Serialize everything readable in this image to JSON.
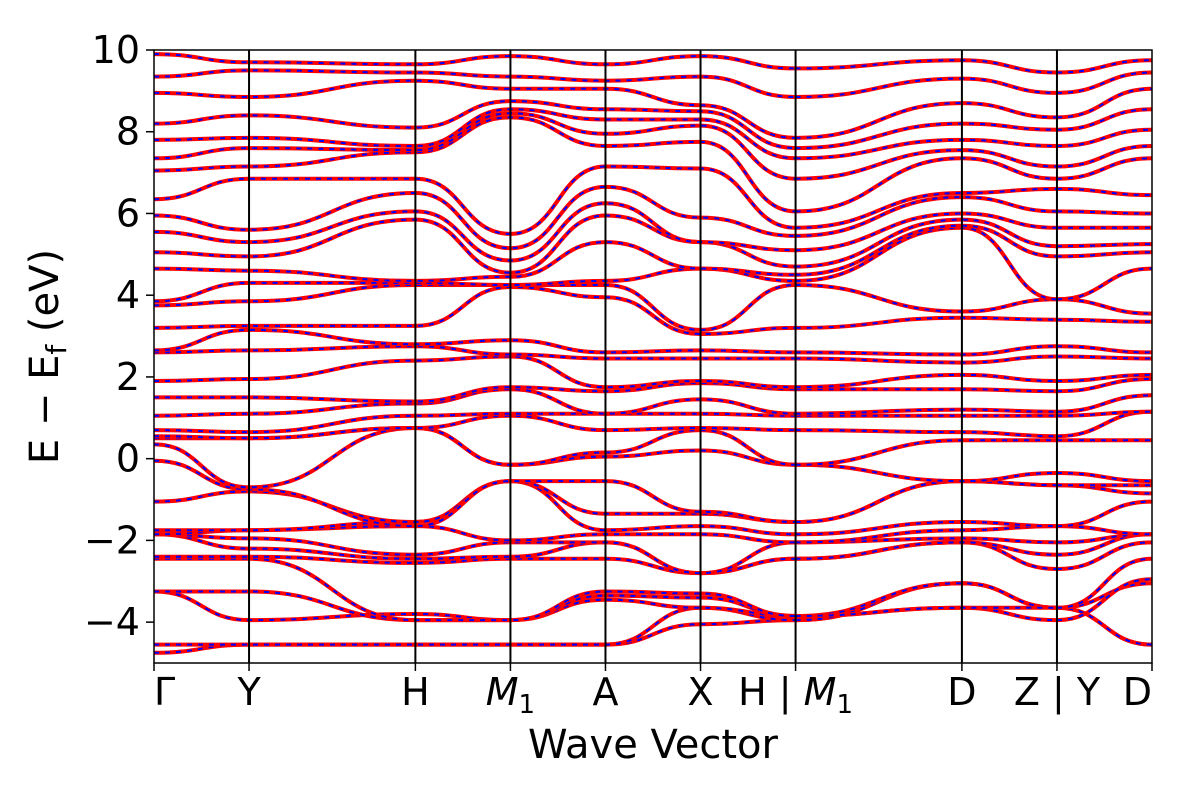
{
  "chart_data": {
    "type": "line",
    "title": "",
    "xlabel": "Wave Vector",
    "ylabel": "E − E",
    "ylabel_subscript": "f",
    "ylabel_unit": " (eV)",
    "ylim": [
      -5,
      10
    ],
    "yticks": [
      -4,
      -2,
      0,
      2,
      4,
      6,
      8,
      10
    ],
    "ytick_labels": [
      "−4",
      "−2",
      "0",
      "2",
      "4",
      "6",
      "8",
      "10"
    ],
    "kpath": {
      "positions": [
        0,
        1,
        2.75,
        3.75,
        4.75,
        5.75,
        6.75,
        8.5,
        9.5,
        10.5
      ],
      "labels": [
        "Γ",
        "Y",
        "H",
        "M",
        "A",
        "X",
        "H | M",
        "D",
        "Z | Y",
        "D"
      ],
      "label_subscripts": [
        "",
        "",
        "",
        "1",
        "",
        "",
        "1",
        "",
        "",
        ""
      ],
      "label_italic": [
        false,
        false,
        false,
        true,
        false,
        false,
        true,
        false,
        false,
        false
      ],
      "break_positions": [
        6.75,
        9.5
      ]
    },
    "grid": false,
    "legend": "none",
    "colors": {
      "series_a": "#ff0000",
      "series_b": "#0000ff",
      "vline": "#000000",
      "frame": "#000000"
    },
    "series": [
      {
        "values": [
          -4.75,
          -4.55,
          -4.55,
          -4.55,
          -4.55,
          -4.05,
          -3.95,
          -3.05,
          -3.65,
          -4.55
        ]
      },
      {
        "values": [
          -4.55,
          -4.55,
          -4.55,
          -4.55,
          -4.55,
          -3.65,
          -3.95,
          -3.05,
          -3.65,
          -4.55
        ]
      },
      {
        "values": [
          -3.25,
          -3.95,
          -3.8,
          -3.95,
          -3.45,
          -3.65,
          -3.85,
          -3.05,
          -3.65,
          -3.05
        ]
      },
      {
        "values": [
          -3.25,
          -3.25,
          -3.95,
          -3.95,
          -3.35,
          -3.4,
          -3.85,
          -3.65,
          -3.95,
          -2.95
        ]
      },
      {
        "values": [
          -2.45,
          -2.45,
          -3.95,
          -3.95,
          -3.25,
          -3.3,
          -3.85,
          -3.65,
          -3.65,
          -2.45
        ]
      },
      {
        "values": [
          -2.4,
          -2.4,
          -2.55,
          -2.45,
          -2.45,
          -2.8,
          -2.45,
          -2.05,
          -2.7,
          -2.05
        ]
      },
      {
        "values": [
          -1.85,
          -2.2,
          -2.45,
          -2.4,
          -2.05,
          -2.8,
          -2.45,
          -2.05,
          -2.35,
          -1.85
        ]
      },
      {
        "values": [
          -1.85,
          -1.95,
          -2.35,
          -2.05,
          -2.05,
          -2.8,
          -2.05,
          -1.95,
          -2.05,
          -1.85
        ]
      },
      {
        "values": [
          -1.85,
          -1.75,
          -1.65,
          -2.0,
          -1.85,
          -1.85,
          -2.05,
          -1.75,
          -1.65,
          -1.85
        ]
      },
      {
        "values": [
          -1.75,
          -1.75,
          -1.55,
          -0.55,
          -1.75,
          -1.65,
          -1.85,
          -1.55,
          -1.65,
          -1.05
        ]
      },
      {
        "values": [
          -1.05,
          -0.8,
          -1.55,
          -0.55,
          -1.35,
          -1.35,
          -1.55,
          -0.55,
          -0.65,
          -0.85
        ]
      },
      {
        "values": [
          -0.05,
          -0.75,
          -1.65,
          -0.55,
          -0.55,
          -1.3,
          -1.55,
          -0.55,
          -0.65,
          -0.65
        ]
      },
      {
        "values": [
          0.35,
          -0.7,
          0.75,
          -0.15,
          0.05,
          0.2,
          -0.15,
          -0.55,
          -0.35,
          -0.55
        ]
      },
      {
        "values": [
          0.5,
          0.5,
          0.75,
          -0.15,
          0.15,
          0.7,
          -0.15,
          0.45,
          0.45,
          0.45
        ]
      },
      {
        "values": [
          0.55,
          0.5,
          0.75,
          1.05,
          0.7,
          0.75,
          0.7,
          0.65,
          0.55,
          1.15
        ]
      },
      {
        "values": [
          0.7,
          0.65,
          1.05,
          1.1,
          1.1,
          1.1,
          1.05,
          1.05,
          1.05,
          1.15
        ]
      },
      {
        "values": [
          1.05,
          1.1,
          1.35,
          1.7,
          1.1,
          1.45,
          1.1,
          1.2,
          1.15,
          1.55
        ]
      },
      {
        "values": [
          1.5,
          1.5,
          1.4,
          1.75,
          1.65,
          1.85,
          1.7,
          1.7,
          1.65,
          1.95
        ]
      },
      {
        "values": [
          1.9,
          1.95,
          2.4,
          2.5,
          1.75,
          1.9,
          1.75,
          2.05,
          1.9,
          2.05
        ]
      },
      {
        "values": [
          2.6,
          2.65,
          2.75,
          2.55,
          2.45,
          2.45,
          2.45,
          2.35,
          2.5,
          2.45
        ]
      },
      {
        "values": [
          2.65,
          3.15,
          2.8,
          2.9,
          2.6,
          2.65,
          2.6,
          2.55,
          2.75,
          2.6
        ]
      },
      {
        "values": [
          3.2,
          3.25,
          3.25,
          4.2,
          3.95,
          3.05,
          3.2,
          3.45,
          3.4,
          3.35
        ]
      },
      {
        "values": [
          3.75,
          3.85,
          4.25,
          4.25,
          4.25,
          3.15,
          4.25,
          3.6,
          3.9,
          3.55
        ]
      },
      {
        "values": [
          3.85,
          4.3,
          4.3,
          4.25,
          4.35,
          4.65,
          4.35,
          5.65,
          3.9,
          4.65
        ]
      },
      {
        "values": [
          4.65,
          4.6,
          4.35,
          4.45,
          5.3,
          4.65,
          4.5,
          5.7,
          4.95,
          5.05
        ]
      },
      {
        "values": [
          5.05,
          4.95,
          5.85,
          4.55,
          5.95,
          5.3,
          4.7,
          5.85,
          5.2,
          5.25
        ]
      },
      {
        "values": [
          5.55,
          5.3,
          6.05,
          4.85,
          6.25,
          5.3,
          5.1,
          6.0,
          5.65,
          5.65
        ]
      },
      {
        "values": [
          5.95,
          5.6,
          6.5,
          5.15,
          6.65,
          5.9,
          5.45,
          6.4,
          6.05,
          6.0
        ]
      },
      {
        "values": [
          6.35,
          6.85,
          6.85,
          5.5,
          7.15,
          7.1,
          5.65,
          6.5,
          6.6,
          6.45
        ]
      },
      {
        "values": [
          7.05,
          7.15,
          7.5,
          8.35,
          7.65,
          7.75,
          6.05,
          7.35,
          6.85,
          7.35
        ]
      },
      {
        "values": [
          7.35,
          7.6,
          7.55,
          8.45,
          7.95,
          8.15,
          6.85,
          7.55,
          7.15,
          7.65
        ]
      },
      {
        "values": [
          7.8,
          7.85,
          7.65,
          8.55,
          8.3,
          8.3,
          7.35,
          7.8,
          7.65,
          8.05
        ]
      },
      {
        "values": [
          8.2,
          8.4,
          8.1,
          8.75,
          8.55,
          8.5,
          7.6,
          8.2,
          8.05,
          8.55
        ]
      },
      {
        "values": [
          8.95,
          8.85,
          9.25,
          9.05,
          9.05,
          8.65,
          7.85,
          8.7,
          8.35,
          9.05
        ]
      },
      {
        "values": [
          9.35,
          9.5,
          9.45,
          9.35,
          9.25,
          9.35,
          8.85,
          9.3,
          8.95,
          9.45
        ]
      },
      {
        "values": [
          9.9,
          9.7,
          9.65,
          9.85,
          9.65,
          9.85,
          9.55,
          9.75,
          9.45,
          9.75
        ]
      }
    ]
  }
}
